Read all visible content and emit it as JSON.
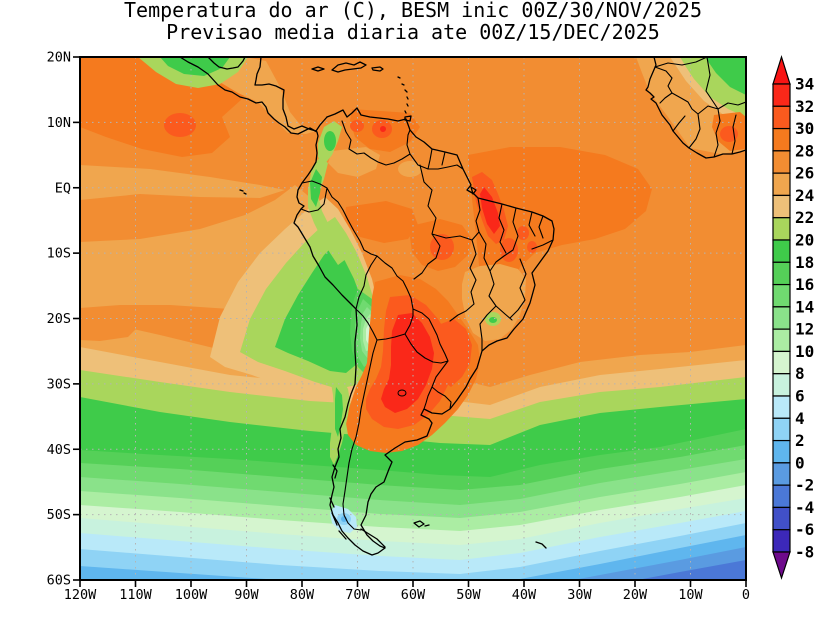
{
  "title": {
    "line1": "Temperatura do ar (C), BESM inic 00Z/30/NOV/2025",
    "line2": "Previsao media diaria ate 00Z/15/DEC/2025"
  },
  "axes": {
    "lat_labels": [
      "20N",
      "10N",
      "EQ",
      "10S",
      "20S",
      "30S",
      "40S",
      "50S",
      "60S"
    ],
    "lon_labels": [
      "120W",
      "110W",
      "100W",
      "90W",
      "80W",
      "70W",
      "60W",
      "50W",
      "40W",
      "30W",
      "20W",
      "10W",
      "0"
    ]
  },
  "colorbar": {
    "tick_labels": [
      "34",
      "32",
      "30",
      "28",
      "26",
      "24",
      "22",
      "20",
      "18",
      "16",
      "14",
      "12",
      "10",
      "8",
      "6",
      "4",
      "2",
      "0",
      "-2",
      "-4",
      "-6",
      "-8"
    ],
    "arrow_top_color": "#f81414",
    "arrow_bottom_color": "#6e0a8c",
    "segment_colors": [
      "#fa2819",
      "#fb5a1e",
      "#f57a1e",
      "#f28d32",
      "#f0a64e",
      "#eec079",
      "#a9d65c",
      "#3fcb4a",
      "#55d058",
      "#70da70",
      "#8ae28a",
      "#abeda3",
      "#d5f5cf",
      "#c8f2de",
      "#b9e9f9",
      "#8fd3f5",
      "#5fb6ee",
      "#5a9be1",
      "#4b78d7",
      "#4150c8",
      "#3c28b9"
    ]
  },
  "chart_data": {
    "type": "heatmap",
    "title": "Temperatura do ar (C), BESM inic 00Z/30/NOV/2025",
    "subtitle": "Previsao media diaria ate 00Z/15/DEC/2025",
    "variable": "Air temperature (C), forecast daily mean",
    "model": "BESM",
    "init_time": "00Z/30/NOV/2025",
    "valid_through": "00Z/15/DEC/2025",
    "units": "C",
    "x_axis": {
      "ticks": [
        "120W",
        "110W",
        "100W",
        "90W",
        "80W",
        "70W",
        "60W",
        "50W",
        "40W",
        "30W",
        "20W",
        "10W",
        "0"
      ],
      "range_deg_lon": [
        -120,
        0
      ]
    },
    "y_axis": {
      "ticks": [
        "20N",
        "10N",
        "EQ",
        "10S",
        "20S",
        "30S",
        "40S",
        "50S",
        "60S"
      ],
      "range_deg_lat": [
        -60,
        20
      ]
    },
    "contour_levels_C": [
      -8,
      -6,
      -4,
      -2,
      0,
      2,
      4,
      6,
      8,
      10,
      12,
      14,
      16,
      18,
      20,
      22,
      24,
      26,
      28,
      30,
      32,
      34
    ],
    "grid": true,
    "legend_position": "right-colorbar",
    "notable_features": [
      {
        "area": "Northern Argentina / Paraguay interior",
        "approx_value_C": "30 to 34"
      },
      {
        "area": "Central and northeastern Brazil hot spots",
        "approx_value_C": "28 to 32"
      },
      {
        "area": "Venezuela coastal spots",
        "approx_value_C": "28 to 32"
      },
      {
        "area": "Tropical Atlantic and Amazon basin",
        "approx_value_C": "26 to 28"
      },
      {
        "area": "Equatorial / southeast Pacific cold tongue",
        "approx_value_C": "22 to 26"
      },
      {
        "area": "Andes Altiplano cold core (Peru-Bolivia-Chile)",
        "approx_value_C": "6 to 14"
      },
      {
        "area": "West Africa, northeast corner",
        "approx_value_C": "18 to 22"
      },
      {
        "area": "Southern mid-latitude ocean bands 40S-55S",
        "approx_value_C": "2 to 18"
      },
      {
        "area": "Tierra del Fuego spot",
        "approx_value_C": "2 to 6"
      },
      {
        "area": "Southern Ocean near 60S",
        "approx_value_C": "-4 to 2"
      }
    ]
  }
}
